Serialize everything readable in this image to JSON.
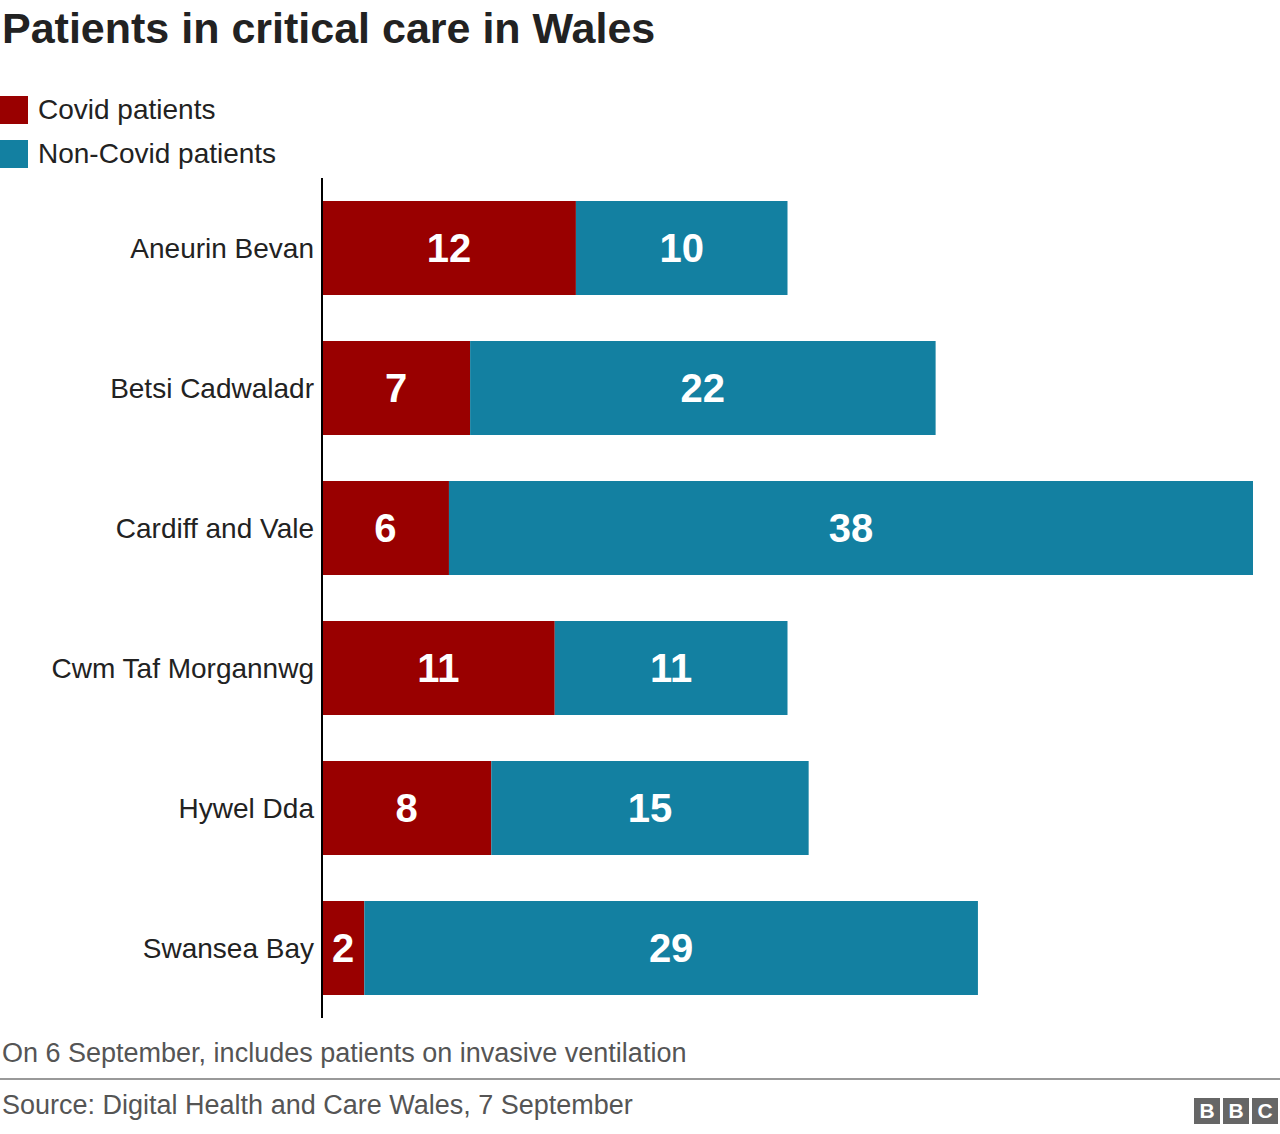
{
  "chart_data": {
    "type": "bar",
    "orientation": "horizontal",
    "stacked": true,
    "data_labels": true,
    "tick_labels": "y",
    "legend": "top-left",
    "title": "Patients in critical care in Wales",
    "note": "On 6 September, includes patients on invasive ventilation",
    "source": "Source: Digital Health and Care Wales, 7 September",
    "logo": "BBC",
    "categories": [
      "Aneurin Bevan",
      "Betsi Cadwaladr",
      "Cardiff and Vale",
      "Cwm Taf Morgannwg",
      "Hywel Dda",
      "Swansea Bay"
    ],
    "series": [
      {
        "name": "Covid patients",
        "color": "#990000",
        "values": [
          12,
          7,
          6,
          11,
          8,
          2
        ]
      },
      {
        "name": "Non-Covid patients",
        "color": "#1380a1",
        "values": [
          10,
          22,
          38,
          11,
          15,
          29
        ]
      }
    ],
    "xlim": [
      0,
      44
    ]
  }
}
